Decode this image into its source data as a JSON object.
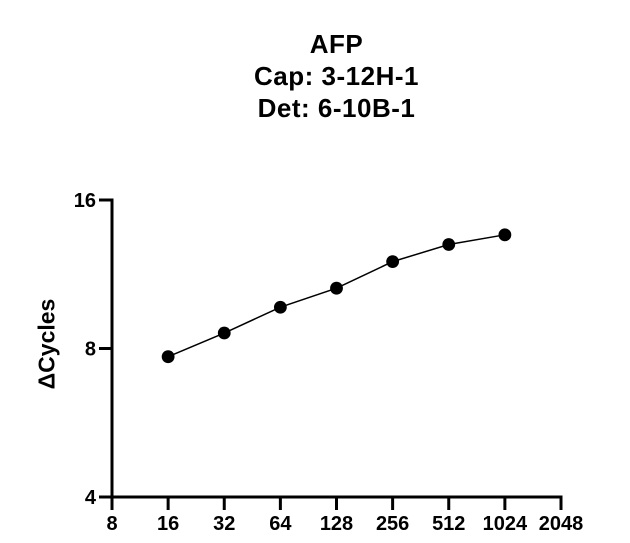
{
  "title": {
    "line1": "AFP",
    "line2": "Cap: 3-12H-1",
    "line3": "Det: 6-10B-1"
  },
  "colors": {
    "foreground": "#000000",
    "background": "#ffffff"
  },
  "chart_data": {
    "type": "line",
    "title": "AFP",
    "subtitle": [
      "Cap: 3-12H-1",
      "Det: 6-10B-1"
    ],
    "xlabel": "",
    "ylabel": "ΔCycles",
    "x_scale": "log2",
    "y_scale": "log2",
    "xlim": [
      8,
      2048
    ],
    "ylim": [
      4,
      16
    ],
    "x_ticks": [
      "8",
      "16",
      "32",
      "64",
      "128",
      "256",
      "512",
      "1024",
      "2048"
    ],
    "x_tick_values": [
      8,
      16,
      32,
      64,
      128,
      256,
      512,
      1024,
      2048
    ],
    "y_ticks": [
      "4",
      "8",
      "16"
    ],
    "y_tick_values": [
      4,
      8,
      16
    ],
    "grid": false,
    "legend": "none",
    "series": [
      {
        "name": "AFP",
        "marker": "filled-circle",
        "color": "#000000",
        "x": [
          16,
          32,
          64,
          128,
          256,
          512,
          1024
        ],
        "y": [
          7.7,
          8.6,
          9.7,
          10.6,
          12.0,
          13.0,
          13.6
        ]
      }
    ]
  }
}
